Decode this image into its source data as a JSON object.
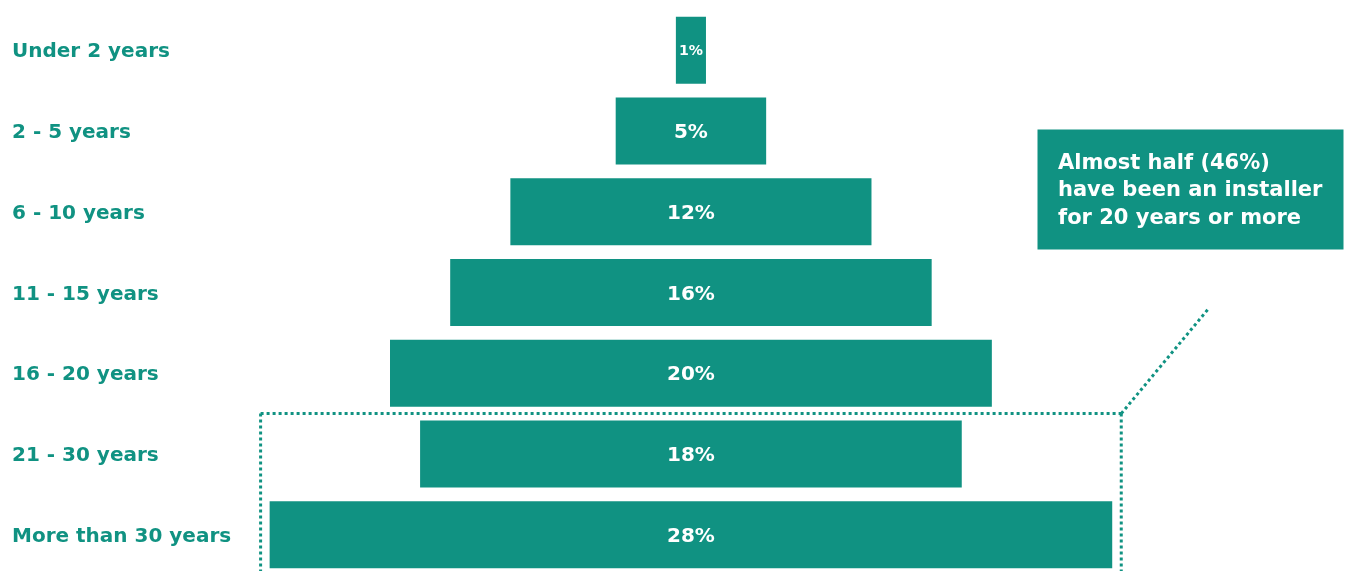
{
  "chart_data": {
    "type": "other",
    "categories": [
      "Under 2 years",
      "2 - 5 years",
      "6 - 10 years",
      "11 - 15 years",
      "16 - 20 years",
      "21 - 30 years",
      "More than 30 years"
    ],
    "values": [
      1,
      5,
      12,
      16,
      20,
      18,
      28
    ],
    "value_labels": [
      "1%",
      "5%",
      "12%",
      "16%",
      "20%",
      "18%",
      "28%"
    ],
    "color": "#109282",
    "annotations": [
      "Almost half (46%)\nhave been an installer\nfor 20 years or more"
    ]
  }
}
